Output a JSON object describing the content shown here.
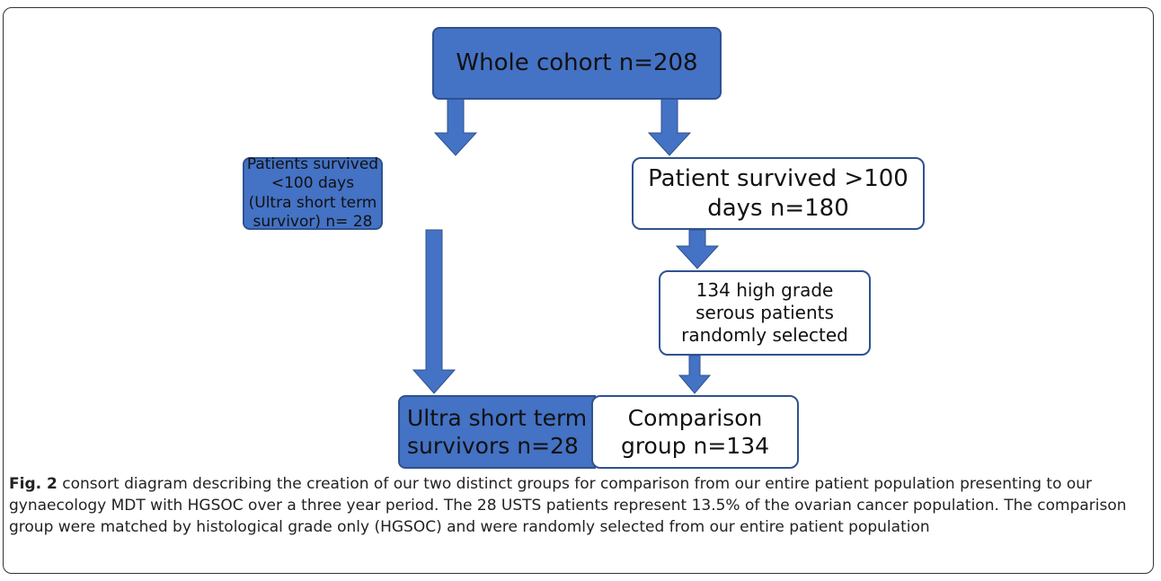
{
  "nodes": [
    {
      "id": "whole",
      "lines": [
        "Whole cohort n=208"
      ]
    },
    {
      "id": "short",
      "lines": [
        "Patients survived <100 days",
        "(Ultra short term survivor) n= 28"
      ]
    },
    {
      "id": "long",
      "lines": [
        "Patient survived >100",
        "days n=180"
      ]
    },
    {
      "id": "selected",
      "lines": [
        "134 high grade",
        "serous patients",
        "randomly selected"
      ]
    },
    {
      "id": "usts",
      "lines": [
        "Ultra short term",
        "survivors n=28"
      ]
    },
    {
      "id": "comparison",
      "lines": [
        "Comparison",
        "group n=134"
      ]
    }
  ],
  "caption": {
    "label": "Fig. 2",
    "text": "consort diagram describing the creation of our two distinct groups for comparison from our entire patient population presenting to our gynaecology MDT with HGSOC over a three year period. The 28 USTS patients represent 13.5% of the ovarian cancer population. The comparison group were matched by histological grade only (HGSOC) and were randomly selected from our entire patient population"
  }
}
